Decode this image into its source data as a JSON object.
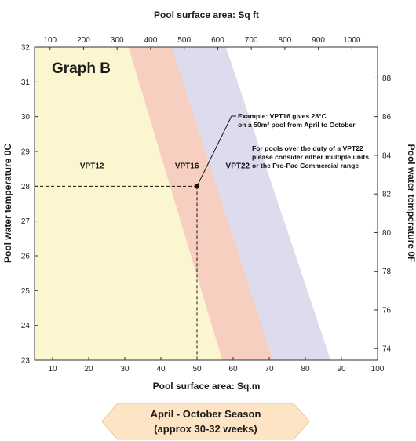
{
  "chart_data": {
    "type": "area",
    "title": "Graph B",
    "xlabel": "Pool surface area: Sq.m",
    "x_ticks": [
      10,
      20,
      30,
      40,
      50,
      60,
      70,
      80,
      90,
      100
    ],
    "xlim": [
      5,
      100
    ],
    "x2label": "Pool surface area: Sq ft",
    "x2_ticks": [
      100,
      200,
      300,
      400,
      500,
      600,
      700,
      800,
      900,
      1000
    ],
    "ylabel": "Pool water temperature 0C",
    "y_ticks": [
      23,
      24,
      25,
      26,
      27,
      28,
      29,
      30,
      31,
      32
    ],
    "ylim": [
      23,
      32
    ],
    "y2label": "Pool water temperature 0F",
    "y2_ticks": [
      74,
      76,
      78,
      80,
      82,
      84,
      86,
      88
    ],
    "grid": false,
    "series": [
      {
        "name": "VPT12",
        "color": "#fbf6cf",
        "upper_edge": [
          {
            "x": 31,
            "y": 32
          },
          {
            "x": 57,
            "y": 23
          }
        ]
      },
      {
        "name": "VPT16",
        "color": "#f7cfc0",
        "upper_edge": [
          {
            "x": 43,
            "y": 32
          },
          {
            "x": 71,
            "y": 23
          }
        ]
      },
      {
        "name": "VPT22",
        "color": "#dcdcee",
        "upper_edge": [
          {
            "x": 58,
            "y": 32
          },
          {
            "x": 87,
            "y": 23
          }
        ]
      }
    ],
    "example_point": {
      "x": 50,
      "y": 28
    },
    "annotation": {
      "lines": [
        "Example: VPT16 gives 28°C",
        "on a 50m² pool from April to October",
        "",
        "For pools over the duty of a VPT22",
        "please consider either multiple units",
        "or the Pro-Pac Commercial range"
      ]
    }
  },
  "season_banner": {
    "line1": "April - October Season",
    "line2": "(approx 30-32 weeks)",
    "color": "#fce4c4"
  }
}
